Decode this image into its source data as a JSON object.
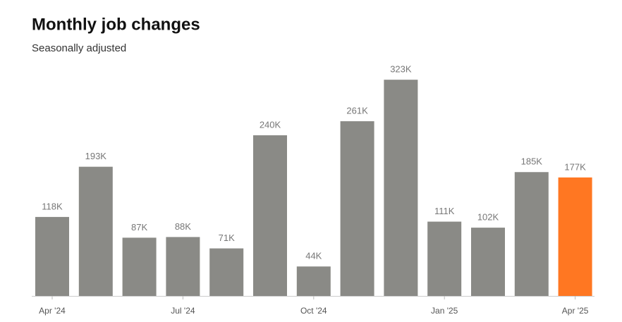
{
  "chart_data": {
    "type": "bar",
    "title": "Monthly job changes",
    "subtitle": "Seasonally adjusted",
    "categories": [
      "Apr '24",
      null,
      null,
      "Jul '24",
      null,
      null,
      "Oct '24",
      null,
      null,
      "Jan '25",
      null,
      null,
      "Apr '25"
    ],
    "values": [
      118,
      193,
      87,
      88,
      71,
      240,
      44,
      261,
      323,
      111,
      102,
      185,
      177
    ],
    "value_labels": [
      "118K",
      "193K",
      "87K",
      "88K",
      "71K",
      "240K",
      "44K",
      "261K",
      "323K",
      "111K",
      "102K",
      "185K",
      "177K"
    ],
    "colors": [
      "#8a8a86",
      "#8a8a86",
      "#8a8a86",
      "#8a8a86",
      "#8a8a86",
      "#8a8a86",
      "#8a8a86",
      "#8a8a86",
      "#8a8a86",
      "#8a8a86",
      "#8a8a86",
      "#8a8a86",
      "#ff7722"
    ]
  }
}
